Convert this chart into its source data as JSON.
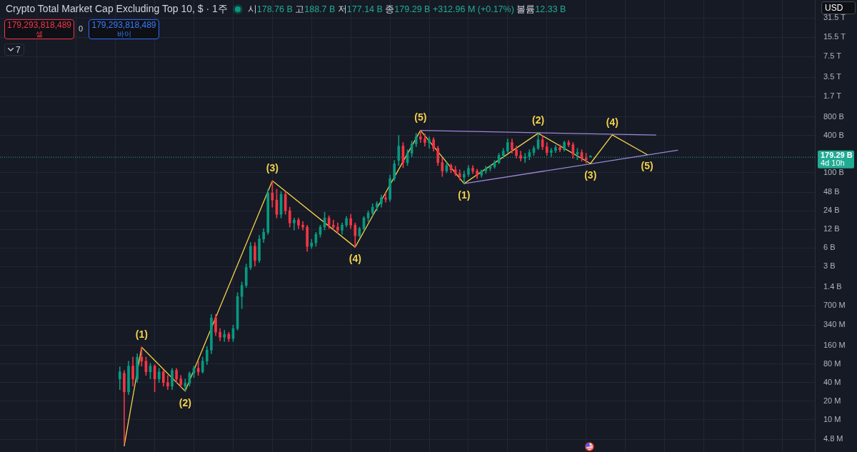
{
  "chart_data": {
    "type": "candlestick",
    "title": "Crypto Total Market Cap Excluding Top 10, $ · 1주",
    "subtitle": "시178.76 B 고188.7 B 저177.14 B 종179.29 B +312.96 M (+0.17%) 볼륨12.33 B",
    "categories": [
      null,
      null,
      null,
      null,
      null,
      null,
      null,
      null,
      null,
      null,
      null,
      null,
      null,
      null,
      null,
      null,
      null,
      null,
      null,
      null,
      null,
      null,
      null,
      null,
      null,
      null,
      null,
      null,
      null,
      null,
      null,
      null,
      null,
      null,
      null,
      null,
      null,
      null,
      null,
      null,
      null,
      null,
      null,
      null,
      null,
      null,
      null,
      null,
      null,
      null,
      null,
      null,
      null,
      null,
      null,
      null,
      null,
      null,
      null,
      null,
      null,
      null,
      null,
      null,
      null,
      null,
      null,
      null,
      null,
      null,
      null,
      null,
      null,
      null,
      null,
      null,
      null,
      null,
      null,
      null,
      null,
      null,
      null,
      null,
      null,
      null,
      null,
      null,
      null,
      null,
      null,
      null,
      null,
      null,
      null,
      null,
      null,
      null,
      null,
      null,
      null,
      null,
      null,
      null,
      null,
      null,
      null,
      null,
      null,
      null,
      null,
      null,
      null,
      null,
      null,
      null,
      null,
      null,
      null,
      null,
      null,
      null,
      null,
      null,
      null,
      null,
      null,
      null,
      null,
      null,
      null,
      null,
      null,
      null,
      null,
      null,
      null,
      null,
      null,
      null,
      null,
      null,
      null,
      null,
      null,
      null,
      null,
      null,
      null,
      null,
      null,
      null,
      null,
      null,
      null,
      null,
      null,
      null,
      null,
      null,
      null,
      null,
      null,
      null,
      null,
      null,
      null,
      null,
      null,
      null,
      null,
      null,
      null,
      null,
      null,
      null,
      null,
      null,
      null,
      null,
      null,
      null,
      null,
      null,
      null,
      null,
      null
    ],
    "series": [
      {
        "type": "candlestick",
        "ohlc": [
          null,
          null,
          null,
          null,
          null,
          null,
          null,
          null,
          null,
          null,
          null,
          null,
          null,
          null,
          null,
          null,
          null,
          null,
          null,
          null,
          null,
          null,
          null,
          null,
          null,
          null,
          null,
          [
            45600000.0,
            71700000.0,
            30600000.0,
            59500000.0
          ],
          [
            56400000.0,
            62700000.0,
            4200000.0,
            28200000.0
          ],
          [
            28200000.0,
            88700000.0,
            25400000.0,
            73600000.0
          ],
          [
            73600000.0,
            103000000.0,
            34900000.0,
            45600000.0
          ],
          [
            45600000.0,
            117000000.0,
            39900000.0,
            103000000.0
          ],
          [
            103000000.0,
            149000000.0,
            73600000.0,
            88700000.0
          ],
          [
            88700000.0,
            103000000.0,
            52100000.0,
            59500000.0
          ],
          [
            59500000.0,
            81900000.0,
            45600000.0,
            73600000.0
          ],
          [
            73600000.0,
            77600000.0,
            28200000.0,
            45600000.0
          ],
          [
            45600000.0,
            68000000.0,
            39900000.0,
            59500000.0
          ],
          [
            59500000.0,
            62700000.0,
            34900000.0,
            39900000.0
          ],
          [
            39900000.0,
            52100000.0,
            30600000.0,
            34900000.0
          ],
          [
            34900000.0,
            68000000.0,
            30600000.0,
            62700000.0
          ],
          [
            62700000.0,
            68000000.0,
            39900000.0,
            45600000.0
          ],
          [
            45600000.0,
            52100000.0,
            33100000.0,
            36900000.0
          ],
          [
            34900000.0,
            45600000.0,
            29000000.0,
            38900000.0
          ],
          [
            38900000.0,
            59500000.0,
            34900000.0,
            56400000.0
          ],
          [
            56400000.0,
            73600000.0,
            48100000.0,
            68000000.0
          ],
          [
            68000000.0,
            88700000.0,
            52100000.0,
            59500000.0
          ],
          [
            59500000.0,
            103000000.0,
            56400000.0,
            88700000.0
          ],
          [
            88700000.0,
            153000000.0,
            77600000.0,
            134000000.0
          ],
          [
            134000000.0,
            507000000.0,
            117000000.0,
            444000000.0
          ],
          [
            444000000.0,
            507000000.0,
            228000000.0,
            261000000.0
          ],
          [
            261000000.0,
            298000000.0,
            189000000.0,
            216000000.0
          ],
          [
            216000000.0,
            282000000.0,
            184000000.0,
            241000000.0
          ],
          [
            241000000.0,
            261000000.0,
            184000000.0,
            205000000.0
          ],
          [
            205000000.0,
            340000000.0,
            184000000.0,
            298000000.0
          ],
          [
            298000000.0,
            1140000000.0,
            282000000.0,
            986000000.0
          ],
          [
            986000000.0,
            1700000000.0,
            627000000.0,
            1490000000.0
          ],
          [
            1490000000.0,
            3310000000.0,
            1380000000.0,
            2900000000.0
          ],
          [
            2900000000.0,
            7360000000.0,
            2680000000.0,
            6440000000.0
          ],
          [
            6440000000.0,
            7360000000.0,
            3060000000.0,
            3780000000.0
          ],
          [
            3780000000.0,
            9600000000.0,
            3490000000.0,
            8410000000.0
          ],
          [
            8410000000.0,
            12400000000.0,
            7360000000.0,
            10800000000.0
          ],
          [
            10800000000.0,
            53500000000.0,
            10000000000.0,
            46800000000.0
          ],
          [
            46800000000.0,
            73600000000.0,
            27500000000.0,
            35900000000.0
          ],
          [
            35900000000.0,
            53500000000.0,
            18400000000.0,
            21100000000.0
          ],
          [
            21100000000.0,
            49400000000.0,
            18400000000.0,
            44400000000.0
          ],
          [
            44400000000.0,
            49400000000.0,
            21100000000.0,
            24100000000.0
          ],
          [
            24100000000.0,
            27500000000.0,
            13100000000.0,
            15300000000.0
          ],
          [
            15300000000.0,
            18400000000.0,
            11700000000.0,
            17000000000.0
          ],
          [
            17000000000.0,
            18400000000.0,
            12400000000.0,
            14100000000.0
          ],
          [
            14100000000.0,
            16100000000.0,
            11700000000.0,
            13100000000.0
          ],
          [
            13100000000.0,
            14100000000.0,
            5290000000.0,
            6370000000.0
          ],
          [
            6370000000.0,
            8310000000.0,
            5880000000.0,
            7280000000.0
          ],
          [
            7280000000.0,
            10800000000.0,
            6370000000.0,
            10000000000.0
          ],
          [
            10000000000.0,
            14100000000.0,
            9000000000.0,
            13100000000.0
          ],
          [
            13100000000.0,
            22800000000.0,
            11700000000.0,
            18400000000.0
          ],
          [
            18400000000.0,
            20000000000.0,
            12400000000.0,
            14100000000.0
          ],
          [
            14100000000.0,
            17000000000.0,
            11700000000.0,
            13100000000.0
          ],
          [
            13100000000.0,
            15300000000.0,
            10500000000.0,
            11700000000.0
          ],
          [
            11700000000.0,
            15300000000.0,
            10000000000.0,
            14100000000.0
          ],
          [
            14100000000.0,
            19500000000.0,
            13100000000.0,
            18000000000.0
          ],
          [
            18000000000.0,
            21100000000.0,
            12400000000.0,
            14100000000.0
          ],
          [
            14100000000.0,
            15300000000.0,
            6200000000.0,
            9500000000.0
          ],
          [
            9500000000.0,
            13100000000.0,
            9000000000.0,
            12400000000.0
          ],
          [
            12400000000.0,
            19500000000.0,
            11700000000.0,
            18400000000.0
          ],
          [
            18400000000.0,
            24100000000.0,
            16100000000.0,
            22200000000.0
          ],
          [
            22200000000.0,
            31400000000.0,
            20000000000.0,
            27500000000.0
          ],
          [
            27500000000.0,
            34000000000.0,
            24100000000.0,
            31400000000.0
          ],
          [
            31400000000.0,
            43200000000.0,
            27500000000.0,
            38900000000.0
          ],
          [
            38900000000.0,
            46800000000.0,
            33100000000.0,
            36900000000.0
          ],
          [
            36900000000.0,
            91000000000.0,
            34000000000.0,
            79700000000.0
          ],
          [
            79700000000.0,
            157000000000.0,
            73600000000.0,
            138000000000.0
          ],
          [
            157000000000.0,
            399000000000.0,
            130000000000.0,
            268000000000.0
          ],
          [
            268000000000.0,
            306000000000.0,
            120000000000.0,
            145000000000.0
          ],
          [
            145000000000.0,
            234000000000.0,
            130000000000.0,
            205000000000.0
          ],
          [
            205000000000.0,
            323000000000.0,
            180000000000.0,
            290000000000.0
          ],
          [
            290000000000.0,
            432000000000.0,
            261000000000.0,
            378000000000.0
          ],
          [
            378000000000.0,
            481000000000.0,
            306000000000.0,
            349000000000.0
          ],
          [
            349000000000.0,
            421000000000.0,
            268000000000.0,
            306000000000.0
          ],
          [
            306000000000.0,
            378000000000.0,
            247000000000.0,
            340000000000.0
          ],
          [
            340000000000.0,
            369000000000.0,
            222000000000.0,
            247000000000.0
          ],
          [
            247000000000.0,
            268000000000.0,
            130000000000.0,
            145000000000.0
          ],
          [
            145000000000.0,
            170000000000.0,
            86300000000.0,
            106000000000.0
          ],
          [
            106000000000.0,
            145000000000.0,
            98600000000.0,
            130000000000.0
          ],
          [
            130000000000.0,
            138000000000.0,
            98600000000.0,
            111000000000.0
          ],
          [
            111000000000.0,
            127000000000.0,
            88700000000.0,
            96000000000.0
          ],
          [
            96000000000.0,
            111000000000.0,
            75600000000.0,
            84100000000.0
          ],
          [
            84100000000.0,
            106000000000.0,
            66200000000.0,
            93500000000.0
          ],
          [
            93500000000.0,
            130000000000.0,
            86300000000.0,
            117000000000.0
          ],
          [
            117000000000.0,
            130000000000.0,
            96000000000.0,
            106000000000.0
          ],
          [
            106000000000.0,
            114000000000.0,
            79700000000.0,
            91000000000.0
          ],
          [
            91000000000.0,
            111000000000.0,
            84100000000.0,
            106000000000.0
          ],
          [
            106000000000.0,
            127000000000.0,
            96000000000.0,
            117000000000.0
          ],
          [
            117000000000.0,
            130000000000.0,
            106000000000.0,
            124000000000.0
          ],
          [
            124000000000.0,
            157000000000.0,
            117000000000.0,
            145000000000.0
          ],
          [
            145000000000.0,
            205000000000.0,
            138000000000.0,
            189000000000.0
          ],
          [
            189000000000.0,
            247000000000.0,
            170000000000.0,
            222000000000.0
          ],
          [
            222000000000.0,
            349000000000.0,
            211000000000.0,
            306000000000.0
          ],
          [
            306000000000.0,
            349000000000.0,
            205000000000.0,
            234000000000.0
          ],
          [
            234000000000.0,
            268000000000.0,
            170000000000.0,
            189000000000.0
          ],
          [
            189000000000.0,
            222000000000.0,
            153000000000.0,
            170000000000.0
          ],
          [
            170000000000.0,
            205000000000.0,
            145000000000.0,
            180000000000.0
          ],
          [
            180000000000.0,
            234000000000.0,
            161000000000.0,
            211000000000.0
          ],
          [
            211000000000.0,
            268000000000.0,
            189000000000.0,
            247000000000.0
          ],
          [
            247000000000.0,
            432000000000.0,
            234000000000.0,
            340000000000.0
          ],
          [
            340000000000.0,
            399000000000.0,
            234000000000.0,
            261000000000.0
          ],
          [
            261000000000.0,
            306000000000.0,
            189000000000.0,
            211000000000.0
          ],
          [
            211000000000.0,
            247000000000.0,
            180000000000.0,
            228000000000.0
          ],
          [
            228000000000.0,
            275000000000.0,
            211000000000.0,
            254000000000.0
          ],
          [
            254000000000.0,
            282000000000.0,
            216000000000.0,
            234000000000.0
          ],
          [
            234000000000.0,
            323000000000.0,
            222000000000.0,
            306000000000.0
          ],
          [
            306000000000.0,
            331000000000.0,
            261000000000.0,
            282000000000.0
          ],
          [
            282000000000.0,
            306000000000.0,
            170000000000.0,
            200000000000.0
          ],
          [
            200000000000.0,
            247000000000.0,
            161000000000.0,
            211000000000.0
          ],
          [
            211000000000.0,
            234000000000.0,
            153000000000.0,
            170000000000.0
          ],
          [
            170000000000.0,
            205000000000.0,
            141000000000.0,
            161000000000.0
          ],
          [
            178760000000.0,
            188700000000.0,
            177140000000.0,
            179290000000.0
          ],
          null,
          null,
          null,
          null,
          null,
          null,
          null,
          null,
          null,
          null,
          null,
          null,
          null,
          null,
          null,
          null,
          null,
          null,
          null,
          null,
          null,
          null,
          null,
          null,
          null,
          null,
          null,
          null,
          null,
          null,
          null,
          null,
          null,
          null,
          null,
          null,
          null,
          null,
          null,
          null,
          null,
          null,
          null,
          null,
          null,
          null,
          null,
          null,
          null,
          null,
          null
        ]
      },
      {
        "type": "line",
        "color": "#f2d24b",
        "values": [
          null,
          null,
          null,
          null,
          null,
          null,
          null,
          null,
          null,
          null,
          null,
          null,
          null,
          null,
          null,
          null,
          null,
          null,
          null,
          null,
          null,
          null,
          null,
          null,
          null,
          null,
          null,
          null,
          3780000.0,
          null,
          null,
          null,
          149000000.0,
          null,
          null,
          null,
          null,
          null,
          null,
          null,
          null,
          null,
          29000000.0,
          null,
          null,
          null,
          null,
          null,
          null,
          null,
          null,
          null,
          null,
          null,
          null,
          null,
          null,
          null,
          null,
          null,
          null,
          null,
          73600000000.0,
          null,
          null,
          null,
          null,
          null,
          null,
          null,
          null,
          null,
          null,
          null,
          null,
          null,
          null,
          null,
          null,
          null,
          null,
          6200000000.0,
          null,
          null,
          null,
          null,
          null,
          null,
          null,
          null,
          null,
          null,
          null,
          null,
          null,
          null,
          481000000000.0,
          null,
          null,
          null,
          null,
          null,
          null,
          null,
          null,
          null,
          66200000000.0,
          null,
          null,
          null,
          null,
          null,
          null,
          null,
          null,
          null,
          null,
          null,
          null,
          null,
          null,
          null,
          null,
          432000000000.0,
          null,
          null,
          null,
          null,
          null,
          null,
          null,
          null,
          null,
          null,
          null,
          140000000000.0,
          null,
          null,
          null,
          null,
          407000000000.0,
          null,
          null,
          null,
          null,
          null,
          null,
          null,
          195000000000.0,
          null,
          null,
          null,
          null,
          null,
          null,
          null,
          null,
          null,
          null,
          null,
          null,
          null,
          null,
          null,
          null,
          null,
          null,
          null,
          null,
          null,
          null,
          null,
          null,
          null,
          null,
          null,
          null,
          null,
          null,
          null,
          null,
          null,
          null,
          null,
          null,
          null,
          null
        ]
      },
      {
        "type": "line",
        "color": "#9a87d6",
        "values": [
          null,
          null,
          null,
          null,
          null,
          null,
          null,
          null,
          null,
          null,
          null,
          null,
          null,
          null,
          null,
          null,
          null,
          null,
          null,
          null,
          null,
          null,
          null,
          null,
          null,
          null,
          null,
          null,
          null,
          null,
          null,
          null,
          null,
          null,
          null,
          null,
          null,
          null,
          null,
          null,
          null,
          null,
          null,
          null,
          null,
          null,
          null,
          null,
          null,
          null,
          null,
          null,
          null,
          null,
          null,
          null,
          null,
          null,
          null,
          null,
          null,
          null,
          null,
          null,
          null,
          null,
          null,
          null,
          null,
          null,
          null,
          null,
          null,
          null,
          null,
          null,
          null,
          null,
          null,
          null,
          null,
          null,
          null,
          null,
          null,
          null,
          null,
          null,
          null,
          null,
          null,
          null,
          null,
          null,
          null,
          null,
          481000000000.0,
          null,
          null,
          null,
          null,
          null,
          null,
          null,
          null,
          null,
          null,
          null,
          null,
          null,
          null,
          null,
          null,
          null,
          null,
          null,
          null,
          null,
          null,
          null,
          null,
          null,
          null,
          null,
          null,
          null,
          null,
          null,
          null,
          null,
          null,
          null,
          null,
          null,
          null,
          null,
          null,
          null,
          null,
          null,
          null,
          null,
          null,
          null,
          null,
          null,
          null,
          null,
          null,
          null,
          404000000000.0,
          null,
          null,
          null,
          null,
          null,
          null,
          null,
          null,
          null,
          null,
          null,
          null,
          null,
          null,
          null,
          null,
          null,
          null,
          null,
          null,
          null,
          null,
          null,
          null,
          null,
          null,
          null,
          null,
          null,
          null,
          null,
          null,
          null,
          null,
          null,
          null
        ]
      },
      {
        "type": "line",
        "color": "#9a87d6",
        "values": [
          null,
          null,
          null,
          null,
          null,
          null,
          null,
          null,
          null,
          null,
          null,
          null,
          null,
          null,
          null,
          null,
          null,
          null,
          null,
          null,
          null,
          null,
          null,
          null,
          null,
          null,
          null,
          null,
          null,
          null,
          null,
          null,
          null,
          null,
          null,
          null,
          null,
          null,
          null,
          null,
          null,
          null,
          null,
          null,
          null,
          null,
          null,
          null,
          null,
          null,
          null,
          null,
          null,
          null,
          null,
          null,
          null,
          null,
          null,
          null,
          null,
          null,
          null,
          null,
          null,
          null,
          null,
          null,
          null,
          null,
          null,
          null,
          null,
          null,
          null,
          null,
          null,
          null,
          null,
          null,
          null,
          null,
          null,
          null,
          null,
          null,
          null,
          null,
          null,
          null,
          null,
          null,
          null,
          null,
          null,
          null,
          null,
          null,
          null,
          null,
          null,
          null,
          null,
          null,
          null,
          null,
          66200000000.0,
          null,
          null,
          null,
          null,
          null,
          null,
          null,
          null,
          null,
          null,
          null,
          null,
          null,
          null,
          null,
          null,
          null,
          null,
          null,
          null,
          null,
          null,
          null,
          null,
          null,
          null,
          null,
          null,
          null,
          null,
          null,
          null,
          null,
          null,
          null,
          null,
          null,
          null,
          null,
          null,
          null,
          null,
          null,
          null,
          null,
          null,
          null,
          null,
          230000000000.0,
          null,
          null,
          null,
          null,
          null,
          null,
          null,
          null,
          null,
          null,
          null,
          null,
          null,
          null,
          null,
          null,
          null,
          null,
          null,
          null,
          null,
          null,
          null,
          null,
          null,
          null,
          null,
          null,
          null,
          null,
          null
        ]
      }
    ],
    "log": true,
    "grid": true,
    "tick_labels": "y",
    "ylim": [
      3000000.0,
      62000000000000.0
    ],
    "yticks": [
      {
        "value": 4800000.0,
        "label": "4.8 M"
      },
      {
        "value": 10000000.0,
        "label": "10 M"
      },
      {
        "value": 20000000.0,
        "label": "20 M"
      },
      {
        "value": 40000000.0,
        "label": "40 M"
      },
      {
        "value": 80000000.0,
        "label": "80 M"
      },
      {
        "value": 160000000.0,
        "label": "160 M"
      },
      {
        "value": 340000000.0,
        "label": "340 M"
      },
      {
        "value": 700000000.0,
        "label": "700 M"
      },
      {
        "value": 1400000000.0,
        "label": "1.4 B"
      },
      {
        "value": 3000000000.0,
        "label": "3 B"
      },
      {
        "value": 6000000000.0,
        "label": "6 B"
      },
      {
        "value": 12000000000.0,
        "label": "12 B"
      },
      {
        "value": 24000000000.0,
        "label": "24 B"
      },
      {
        "value": 48000000000.0,
        "label": "48 B"
      },
      {
        "value": 100000000000.0,
        "label": "100 B"
      },
      {
        "value": 400000000000.0,
        "label": "400 B"
      },
      {
        "value": 800000000000.0,
        "label": "800 B"
      },
      {
        "value": 1700000000000.0,
        "label": "1.7 T"
      },
      {
        "value": 3500000000000.0,
        "label": "3.5 T"
      },
      {
        "value": 7500000000000.0,
        "label": "7.5 T"
      },
      {
        "value": 15500000000000.0,
        "label": "15.5 T"
      },
      {
        "value": 31500000000000.0,
        "label": "31.5 T"
      }
    ],
    "ref_lines": [
      {
        "axis": "y",
        "value": 179290000000.0,
        "label": "179.29 B",
        "color": "#22ab94",
        "line_style": "dotted"
      }
    ],
    "annotations": [
      "(1)",
      "(2)",
      "(3)",
      "(4)",
      "(5)",
      "(1)",
      "(2)",
      "(3)",
      "(4)",
      "(5)",
      "179,293,818,489",
      "셀",
      "0",
      "179,293,818,489",
      "바이",
      "7",
      "USD",
      "4d 10h"
    ]
  }
}
